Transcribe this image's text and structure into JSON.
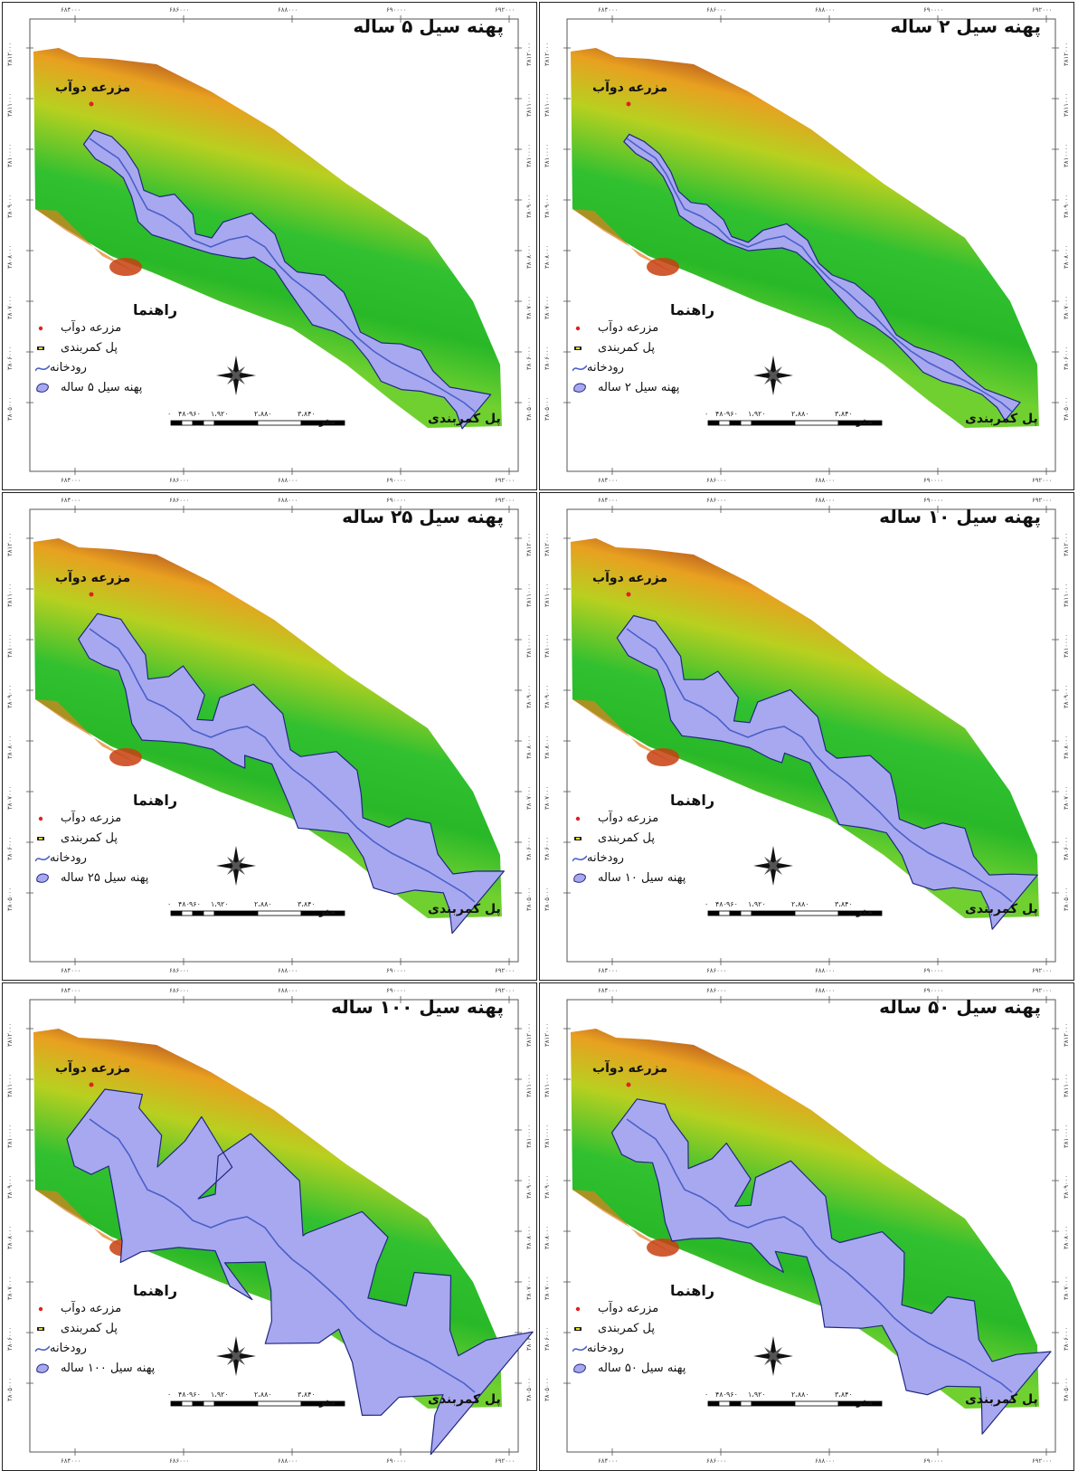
{
  "panels": [
    {
      "id": "p2",
      "title": "پهنه سیل ۲ ساله",
      "flood_legend": "پهنه سیل ۲ ساله",
      "extent": 0.02
    },
    {
      "id": "p5",
      "title": "پهنه سیل ۵ ساله",
      "flood_legend": "پهنه سیل ۵ ساله",
      "extent": 0.06
    },
    {
      "id": "p10",
      "title": "پهنه سیل ۱۰ ساله",
      "flood_legend": "پهنه سیل ۱۰ ساله",
      "extent": 0.11
    },
    {
      "id": "p25",
      "title": "پهنه سیل ۲۵ ساله",
      "flood_legend": "پهنه سیل ۲۵ ساله",
      "extent": 0.13
    },
    {
      "id": "p50",
      "title": "پهنه سیل ۵۰ ساله",
      "flood_legend": "پهنه سیل ۵۰ ساله",
      "extent": 0.18
    },
    {
      "id": "p100",
      "title": "پهنه سیل ۱۰۰ ساله",
      "flood_legend": "پهنه سیل ۱۰۰ ساله",
      "extent": 0.28
    }
  ],
  "legend": {
    "heading": "راهنما",
    "farm": "مزرعه دوآب",
    "bridge": "پل کمربندی",
    "river": "رودخانه"
  },
  "map_labels": {
    "farm": "مزرعه دوآب",
    "bridge": "پل کمربندی"
  },
  "scale": {
    "unit": "متر",
    "ticks": [
      "۰",
      "۴۸۰",
      "۹۶۰",
      "۱،۹۲۰",
      "۲،۸۸۰",
      "۳،۸۴۰"
    ]
  },
  "x_ticks": [
    "۶۸۴۰۰۰",
    "۶۸۶۰۰۰",
    "۶۸۸۰۰۰",
    "۶۹۰۰۰۰",
    "۶۹۲۰۰۰"
  ],
  "y_ticks": [
    "۳۸۱۲۰۰۰",
    "۳۸۱۱۰۰۰",
    "۳۸۱۰۰۰۰",
    "۳۸۰۹۰۰۰",
    "۳۸۰۸۰۰۰",
    "۳۸۰۷۰۰۰",
    "۳۸۰۶۰۰۰",
    "۳۸۰۵۰۰۰"
  ],
  "colors": {
    "flood": "#a8a8f0",
    "flood_edge": "#202880",
    "river": "#4a5fc8",
    "farm_point": "#e02020"
  }
}
